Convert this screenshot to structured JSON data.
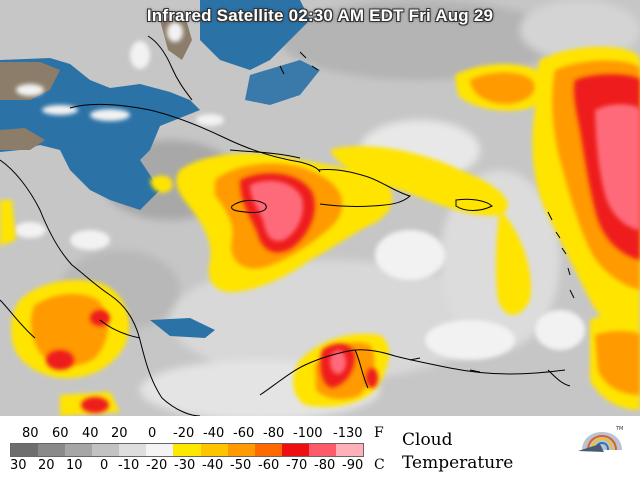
{
  "title": "Infrared Satellite 02:30 AM EDT Fri Aug 29",
  "legend": {
    "title_line1": "Cloud",
    "title_line2": "Temperature",
    "unit_f": "F",
    "unit_c": "C",
    "fahrenheit_ticks": [
      "80",
      "60",
      "40",
      "20",
      "0",
      "-20",
      "-40",
      "-60",
      "-80",
      "-100",
      "-130"
    ],
    "celsius_ticks": [
      "30",
      "20",
      "10",
      "0",
      "-10",
      "-20",
      "-30",
      "-40",
      "-50",
      "-60",
      "-70",
      "-80",
      "-90"
    ],
    "colors": [
      "#6e6e6e",
      "#8a8a8a",
      "#a6a6a6",
      "#c2c2c2",
      "#dedede",
      "#f4f4f4",
      "#ffe800",
      "#ffc400",
      "#ff9a00",
      "#ff6a00",
      "#ee1010",
      "#ff5a6a",
      "#ffb0b8"
    ]
  },
  "map_colors": {
    "ocean": "#2b72a6",
    "land": "#8c7d6a",
    "cloud_gray": "#c8c8c8",
    "cloud_white": "#f2f2f2",
    "yellow": "#ffe400",
    "orange": "#ff9a00",
    "red": "#ee1b1b",
    "pink": "#ff6b7a"
  },
  "logo": {
    "name": "weather-logo",
    "mark": "TM"
  }
}
